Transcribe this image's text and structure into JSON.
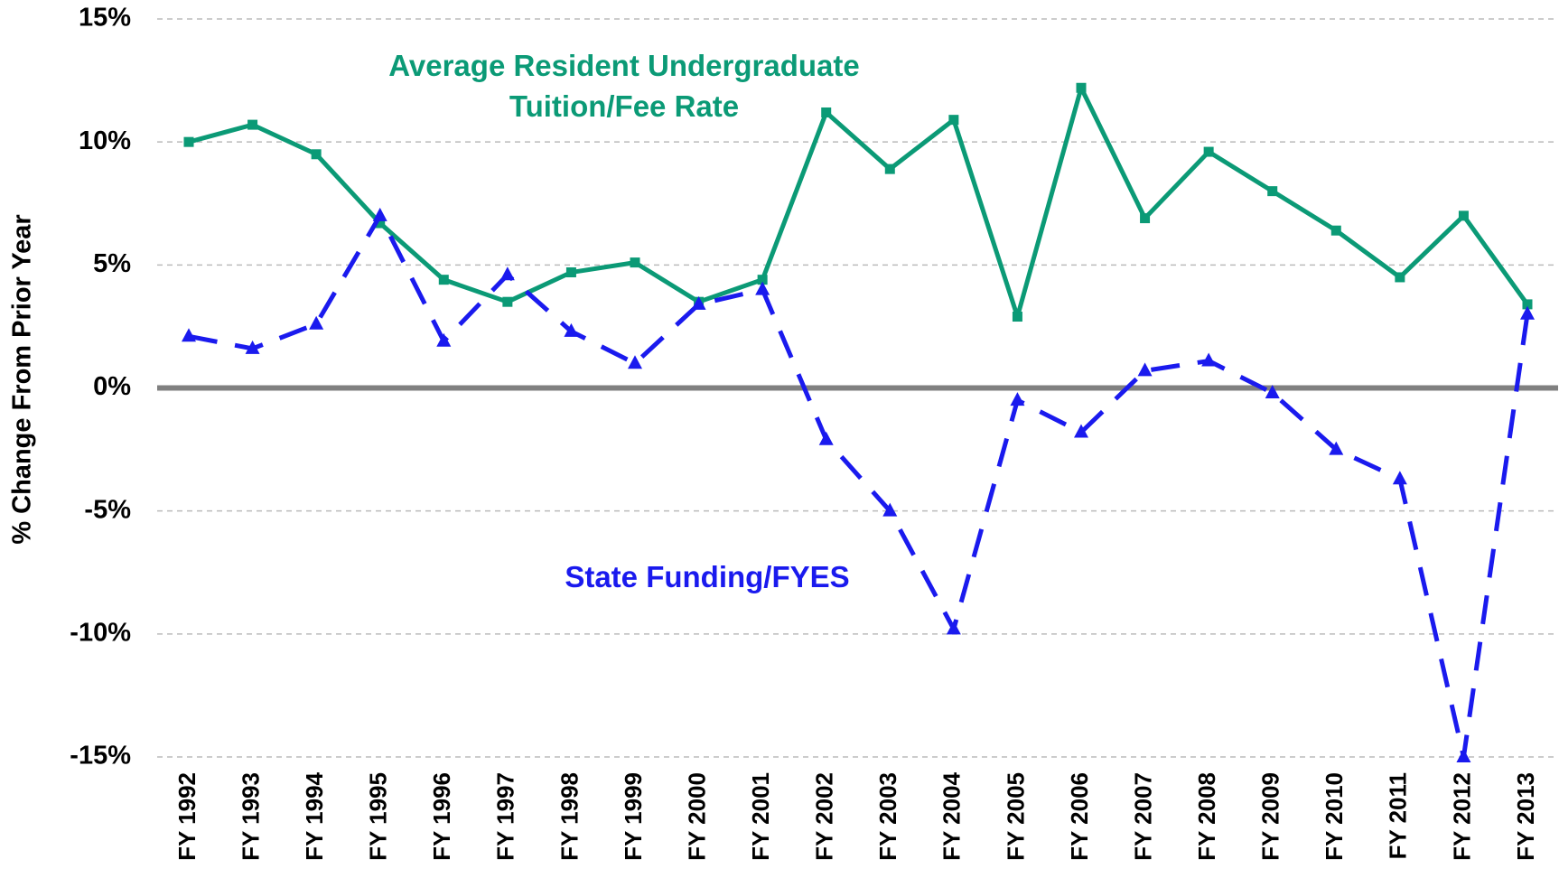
{
  "chart_data": {
    "type": "line",
    "y_label": "% Change From Prior Year",
    "categories": [
      "FY 1992",
      "FY 1993",
      "FY 1994",
      "FY 1995",
      "FY 1996",
      "FY 1997",
      "FY 1998",
      "FY 1999",
      "FY 2000",
      "FY 2001",
      "FY 2002",
      "FY 2003",
      "FY 2004",
      "FY 2005",
      "FY 2006",
      "FY 2007",
      "FY 2008",
      "FY 2009",
      "FY 2010",
      "FY 2011",
      "FY 2012",
      "FY 2013"
    ],
    "series": [
      {
        "name": "Average Resident Undergraduate Tuition/Fee Rate",
        "color": "#0b9a76",
        "marker": "square",
        "dashed": false,
        "values": [
          10.0,
          10.7,
          9.5,
          6.7,
          4.4,
          3.5,
          4.7,
          5.1,
          3.5,
          4.4,
          11.2,
          8.9,
          10.9,
          2.9,
          12.2,
          6.9,
          9.6,
          8.0,
          6.4,
          4.5,
          7.0,
          3.4
        ]
      },
      {
        "name": "State Funding/FYES",
        "color": "#1a1aee",
        "marker": "triangle",
        "dashed": true,
        "values": [
          2.1,
          1.6,
          2.6,
          7.0,
          1.9,
          4.6,
          2.3,
          1.0,
          3.4,
          4.0,
          -2.1,
          -5.0,
          -9.8,
          -0.5,
          -1.8,
          0.7,
          1.1,
          -0.2,
          -2.5,
          -3.7,
          -15.0,
          3.0
        ]
      }
    ],
    "ylim": [
      -15,
      15
    ],
    "yticks": [
      {
        "value": -15,
        "label": "-15%"
      },
      {
        "value": -10,
        "label": "-10%"
      },
      {
        "value": -5,
        "label": "-5%"
      },
      {
        "value": 0,
        "label": "0%"
      },
      {
        "value": 5,
        "label": "5%"
      },
      {
        "value": 10,
        "label": "10%"
      },
      {
        "value": 15,
        "label": "15%"
      }
    ],
    "grid": true
  }
}
